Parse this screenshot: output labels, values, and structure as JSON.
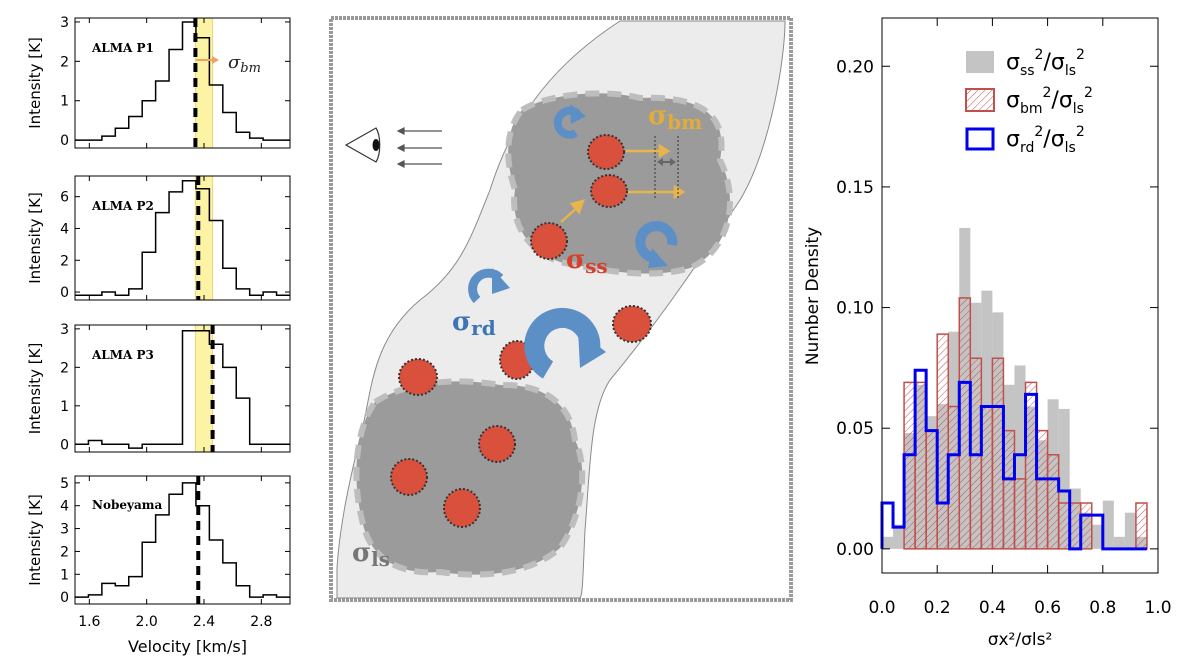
{
  "spectra": {
    "ylabel": "Intensity [K]",
    "xlabel": "Velocity [km/s]",
    "xlim": [
      1.5,
      3.0
    ],
    "xticks": [
      "1.6",
      "2.0",
      "2.4",
      "2.8"
    ],
    "band_label": "σ",
    "band_label_sub": "bm",
    "panels": [
      {
        "label": "ALMA P1",
        "ylim": [
          -0.2,
          3.1
        ],
        "yticks": [
          "0",
          "1",
          "2",
          "3"
        ],
        "ytick_values": [
          0,
          1,
          2,
          3
        ],
        "vline": 2.34,
        "band": [
          2.34,
          2.46
        ],
        "steps": [
          0.0,
          0.0,
          0.1,
          0.3,
          0.6,
          1.0,
          1.5,
          2.3,
          3.0,
          2.6,
          1.4,
          0.7,
          0.2,
          0.05,
          0.0,
          0.0
        ]
      },
      {
        "label": "ALMA P2",
        "ylim": [
          -0.5,
          7.3
        ],
        "yticks": [
          "0",
          "2",
          "4",
          "6"
        ],
        "ytick_values": [
          0,
          2,
          4,
          6
        ],
        "vline": 2.36,
        "band": [
          2.34,
          2.46
        ],
        "steps": [
          -0.2,
          -0.2,
          0.0,
          -0.2,
          0.2,
          2.5,
          5.0,
          6.3,
          7.0,
          6.5,
          4.5,
          1.5,
          0.2,
          -0.2,
          0.0,
          -0.2
        ]
      },
      {
        "label": "ALMA P3",
        "ylim": [
          -0.2,
          3.1
        ],
        "yticks": [
          "0",
          "1",
          "2",
          "3"
        ],
        "ytick_values": [
          0,
          1,
          2,
          3
        ],
        "vline": 2.46,
        "band": [
          2.34,
          2.46
        ],
        "steps": [
          0.0,
          0.1,
          0.0,
          0.0,
          -0.1,
          0.0,
          0.0,
          0.0,
          2.95,
          2.95,
          2.6,
          2.0,
          1.2,
          0.0,
          0.0,
          0.0
        ]
      },
      {
        "label": "Nobeyama",
        "ylim": [
          -0.3,
          5.3
        ],
        "yticks": [
          "0",
          "1",
          "2",
          "3",
          "4",
          "5"
        ],
        "ytick_values": [
          0,
          1,
          2,
          3,
          4,
          5
        ],
        "vline": 2.36,
        "band": null,
        "steps": [
          0.0,
          0.1,
          0.6,
          0.5,
          0.9,
          2.4,
          3.6,
          4.5,
          5.0,
          4.0,
          2.5,
          1.5,
          0.5,
          0.0,
          0.1,
          0.0
        ]
      }
    ]
  },
  "diagram": {
    "labels": {
      "sigma_bm": "σ",
      "sigma_bm_sub": "bm",
      "sigma_ss": "σ",
      "sigma_ss_sub": "ss",
      "sigma_rd": "σ",
      "sigma_rd_sub": "rd",
      "sigma_ls": "σ",
      "sigma_ls_sub": "ls"
    },
    "colors": {
      "cloud": "#ececec",
      "clump": "#9b9b9b",
      "core": "#d9503d",
      "rotation": "#5b8fc6",
      "motion": "#e7b54c",
      "bm_text": "#e2ac3d",
      "ss_text": "#d6402a",
      "rd_text": "#3d74b6",
      "ls_text": "#777777"
    }
  },
  "chart_data": {
    "type": "bar",
    "title": "",
    "xlabel": "σx²/σls²",
    "ylabel": "Number Density",
    "xlim": [
      0.0,
      1.0
    ],
    "ylim": [
      -0.01,
      0.22
    ],
    "xticks": [
      "0.0",
      "0.2",
      "0.4",
      "0.6",
      "0.8",
      "1.0"
    ],
    "xtick_values": [
      0.0,
      0.2,
      0.4,
      0.6,
      0.8,
      1.0
    ],
    "yticks": [
      "0.00",
      "0.05",
      "0.10",
      "0.15",
      "0.20"
    ],
    "ytick_values": [
      0.0,
      0.05,
      0.1,
      0.15,
      0.2
    ],
    "bin_width": 0.04,
    "legend": [
      {
        "base": "σ",
        "sub1": "ss",
        "sup": "2",
        "sub2": "ls",
        "style": "filled-gray"
      },
      {
        "base": "σ",
        "sub1": "bm",
        "sup": "2",
        "sub2": "ls",
        "style": "hatched-red"
      },
      {
        "base": "σ",
        "sub1": "rd",
        "sup": "2",
        "sub2": "ls",
        "style": "step-blue"
      }
    ],
    "series": [
      {
        "name": "σss²/σls²",
        "x_start": 0.0,
        "values": [
          0.005,
          0.01,
          0.048,
          0.068,
          0.055,
          0.06,
          0.09,
          0.133,
          0.102,
          0.107,
          0.098,
          0.068,
          0.076,
          0.059,
          0.045,
          0.062,
          0.058,
          0.025,
          0.015,
          0.01,
          0.02,
          0.005,
          0.015,
          0.005
        ]
      },
      {
        "name": "σbm²/σls²",
        "x_start": 0.0,
        "values": [
          0.0,
          0.0,
          0.069,
          0.069,
          0.049,
          0.089,
          0.059,
          0.104,
          0.079,
          0.059,
          0.079,
          0.049,
          0.029,
          0.069,
          0.049,
          0.039,
          0.019,
          0.019,
          0.019,
          0.0,
          0.0,
          0.0,
          0.0,
          0.019
        ]
      },
      {
        "name": "σrd²/σls²",
        "x_start": 0.0,
        "values": [
          0.019,
          0.009,
          0.039,
          0.074,
          0.049,
          0.019,
          0.039,
          0.069,
          0.039,
          0.059,
          0.059,
          0.029,
          0.039,
          0.064,
          0.029,
          0.029,
          0.024,
          0.0,
          0.014,
          0.014,
          0.0,
          0.0,
          0.0,
          0.0
        ]
      }
    ]
  }
}
